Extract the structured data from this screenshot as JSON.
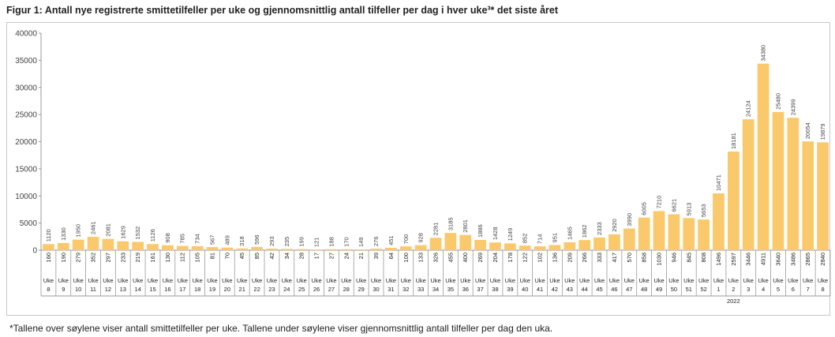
{
  "figure": {
    "title": "Figur 1: Antall nye registrerte smittetilfeller per uke og gjennomsnittlig antall tilfeller per dag i hver uke³* det siste året",
    "footnote": "*Tallene over søylene viser antall smittetilfeller per uke. Tallene under søylene viser gjennomsnittlig antall tilfeller per dag den uka."
  },
  "chart_data": {
    "type": "bar",
    "title": "Antall nye registrerte smittetilfeller per uke og gjennomsnittlig antall tilfeller per dag i hver uke",
    "ylim": [
      0,
      40000
    ],
    "yticks": [
      0,
      5000,
      10000,
      15000,
      20000,
      25000,
      30000,
      35000,
      40000
    ],
    "grid": false,
    "bar_color": "#f9c96b",
    "row_label": "Uke",
    "year_label": "2022",
    "year_label_index": 46,
    "weeks": [
      "8",
      "9",
      "10",
      "11",
      "12",
      "13",
      "14",
      "15",
      "16",
      "17",
      "18",
      "19",
      "20",
      "21",
      "22",
      "23",
      "24",
      "25",
      "26",
      "27",
      "28",
      "29",
      "30",
      "31",
      "32",
      "33",
      "34",
      "35",
      "36",
      "37",
      "38",
      "39",
      "40",
      "41",
      "42",
      "43",
      "44",
      "45",
      "46",
      "47",
      "48",
      "49",
      "50",
      "51",
      "52",
      "1",
      "2",
      "3",
      "4",
      "5",
      "6",
      "7",
      "8"
    ],
    "values": [
      1120,
      1330,
      1950,
      2461,
      2081,
      1629,
      1532,
      1126,
      908,
      785,
      734,
      567,
      489,
      318,
      596,
      293,
      235,
      199,
      121,
      188,
      170,
      149,
      276,
      451,
      700,
      928,
      2281,
      3185,
      2801,
      1886,
      1428,
      1249,
      852,
      714,
      951,
      1465,
      1862,
      2333,
      2920,
      3990,
      6005,
      7210,
      6621,
      5913,
      5653,
      10471,
      18181,
      24124,
      34380,
      25480,
      24399,
      20054,
      19879
    ],
    "daily_avg": [
      160,
      190,
      279,
      352,
      297,
      233,
      219,
      161,
      130,
      112,
      105,
      81,
      70,
      45,
      85,
      42,
      34,
      28,
      17,
      27,
      24,
      21,
      39,
      64,
      100,
      133,
      326,
      455,
      400,
      269,
      204,
      178,
      122,
      102,
      136,
      209,
      266,
      333,
      417,
      570,
      858,
      1030,
      946,
      845,
      808,
      1496,
      2597,
      3446,
      4911,
      3640,
      3486,
      2865,
      2840
    ]
  }
}
